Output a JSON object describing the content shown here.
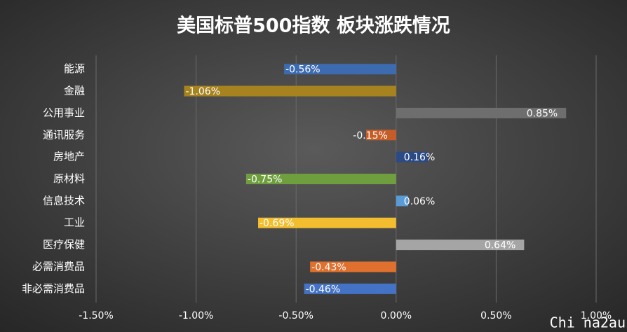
{
  "chart_data": {
    "type": "bar",
    "orientation": "horizontal",
    "title": "美国标普500指数 板块涨跌情况",
    "categories": [
      "能源",
      "金融",
      "公用事业",
      "通讯服务",
      "房地产",
      "原材料",
      "信息技术",
      "工业",
      "医疗保健",
      "必需消费品",
      "非必需消费品"
    ],
    "values": [
      -0.56,
      -1.06,
      0.85,
      -0.15,
      0.16,
      -0.75,
      0.06,
      -0.69,
      0.64,
      -0.43,
      -0.46
    ],
    "value_labels": [
      "-0.56%",
      "-1.06%",
      "0.85%",
      "-0.15%",
      "0.16%",
      "-0.75%",
      "0.06%",
      "-0.69%",
      "0.64%",
      "-0.43%",
      "-0.46%"
    ],
    "colors": [
      "#3d6bb0",
      "#a6831f",
      "#6e6e6e",
      "#c65d27",
      "#2c4a84",
      "#6f9e3f",
      "#5b9bd5",
      "#f2bd2f",
      "#a5a5a5",
      "#e0702e",
      "#4472c4"
    ],
    "xlim": [
      -1.5,
      1.0
    ],
    "xticks": [
      {
        "value": -1.5,
        "label": "-1.50%"
      },
      {
        "value": -1.0,
        "label": "-1.00%"
      },
      {
        "value": -0.5,
        "label": "-0.50%"
      },
      {
        "value": 0,
        "label": "0.00%"
      },
      {
        "value": 0.5,
        "label": "0.50%"
      },
      {
        "value": 1.0,
        "label": "1.00%"
      }
    ],
    "grid": true,
    "watermark": "Chi na2au"
  }
}
